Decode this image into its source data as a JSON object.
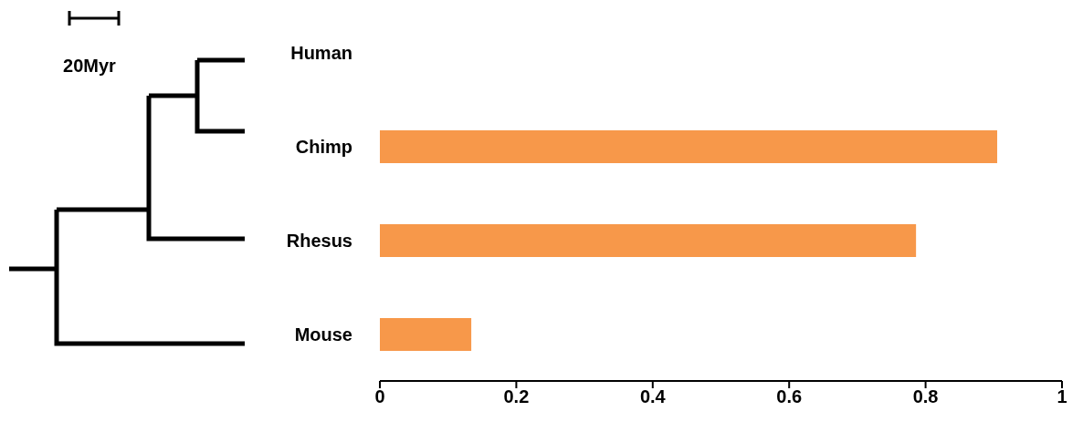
{
  "chart_data": {
    "type": "bar",
    "orientation": "horizontal",
    "categories": [
      "Human",
      "Chimp",
      "Rhesus",
      "Mouse"
    ],
    "values": [
      null,
      0.905,
      0.786,
      0.134
    ],
    "color": "#f7984a",
    "xlim": [
      0,
      1
    ],
    "xticks": [
      0,
      0.2,
      0.4,
      0.6,
      0.8,
      1
    ],
    "annotations": [
      "20Myr"
    ]
  }
}
